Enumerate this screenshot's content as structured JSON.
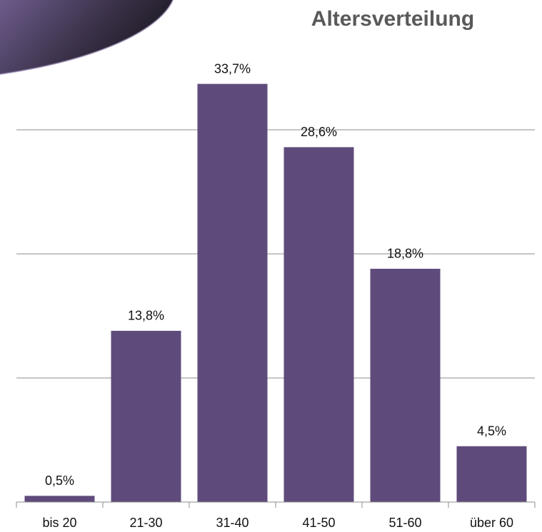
{
  "chart_data": {
    "type": "bar",
    "title": "Altersverteilung",
    "categories": [
      "bis 20",
      "21-30",
      "31-40",
      "41-50",
      "51-60",
      "über 60"
    ],
    "values": [
      0.5,
      13.8,
      33.7,
      28.6,
      18.8,
      4.5
    ],
    "value_labels": [
      "0,5%",
      "13,8%",
      "33,7%",
      "28,6%",
      "18,8%",
      "4,5%"
    ],
    "color": "#5f4b7b",
    "ylim": [
      0,
      40
    ],
    "yticks": [
      0,
      10,
      20,
      30
    ],
    "grid": true
  }
}
